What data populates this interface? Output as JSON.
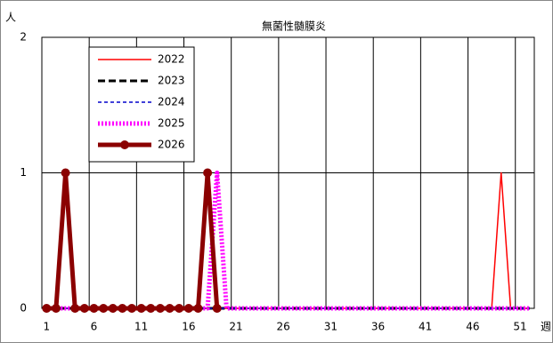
{
  "chart_data": {
    "type": "line",
    "title": "無菌性髄膜炎",
    "y_label": "人",
    "x_label": "週",
    "categories": [
      1,
      null,
      null,
      null,
      null,
      6,
      null,
      null,
      null,
      null,
      11,
      null,
      null,
      null,
      null,
      16,
      null,
      null,
      null,
      null,
      21,
      null,
      null,
      null,
      null,
      26,
      null,
      null,
      null,
      null,
      31,
      null,
      null,
      null,
      null,
      36,
      null,
      null,
      null,
      null,
      41,
      null,
      null,
      null,
      null,
      46,
      null,
      null,
      null,
      null,
      51,
      null
    ],
    "ylim": [
      0,
      2
    ],
    "yticks": [
      0,
      1,
      2
    ],
    "grid": true,
    "legend": "upper-left",
    "series": [
      {
        "name": "2022",
        "color": "#ff0000",
        "width": 1.5,
        "dash": "none",
        "values": [
          0,
          0,
          0,
          0,
          0,
          0,
          0,
          0,
          0,
          0,
          0,
          0,
          0,
          0,
          0,
          0,
          0,
          0,
          0,
          0,
          0,
          0,
          0,
          0,
          0,
          0,
          0,
          0,
          0,
          0,
          0,
          0,
          0,
          0,
          0,
          0,
          0,
          0,
          0,
          0,
          0,
          0,
          0,
          0,
          0,
          0,
          0,
          0,
          1,
          0,
          0,
          0
        ]
      },
      {
        "name": "2023",
        "color": "#000000",
        "width": 3,
        "dash": "8,4",
        "values": [
          0,
          0,
          0,
          0,
          0,
          0,
          0,
          0,
          0,
          0,
          0,
          0,
          0,
          0,
          0,
          0,
          0,
          0,
          0,
          0,
          0,
          0,
          0,
          0,
          0,
          0,
          0,
          0,
          0,
          0,
          0,
          0,
          0,
          0,
          0,
          0,
          0,
          0,
          0,
          0,
          0,
          0,
          0,
          0,
          0,
          0,
          0,
          0,
          0,
          0,
          0,
          0
        ]
      },
      {
        "name": "2024",
        "color": "#0000cc",
        "width": 1.5,
        "dash": "4,3",
        "values": [
          0,
          0,
          0,
          0,
          0,
          0,
          0,
          0,
          0,
          0,
          0,
          0,
          0,
          0,
          0,
          0,
          0,
          0,
          0,
          0,
          0,
          0,
          0,
          0,
          0,
          0,
          0,
          0,
          0,
          0,
          0,
          0,
          0,
          0,
          0,
          0,
          0,
          0,
          0,
          0,
          0,
          0,
          0,
          0,
          0,
          0,
          0,
          0,
          0,
          0,
          0,
          0
        ]
      },
      {
        "name": "2025",
        "color": "#ff00ff",
        "width": 5,
        "dash": "2,2",
        "values": [
          0,
          0,
          0,
          0,
          0,
          0,
          0,
          0,
          0,
          0,
          0,
          0,
          0,
          0,
          0,
          0,
          0,
          0,
          1,
          0,
          0,
          0,
          0,
          0,
          0,
          0,
          0,
          0,
          0,
          0,
          0,
          0,
          0,
          0,
          0,
          0,
          0,
          0,
          0,
          0,
          0,
          0,
          0,
          0,
          0,
          0,
          0,
          0,
          0,
          0,
          0,
          0
        ]
      },
      {
        "name": "2026",
        "color": "#8b0000",
        "width": 5,
        "dash": "none",
        "marker": "circle",
        "values": [
          0,
          0,
          1,
          0,
          0,
          0,
          0,
          0,
          0,
          0,
          0,
          0,
          0,
          0,
          0,
          0,
          0,
          1,
          0,
          null,
          null,
          null,
          null,
          null,
          null,
          null,
          null,
          null,
          null,
          null,
          null,
          null,
          null,
          null,
          null,
          null,
          null,
          null,
          null,
          null,
          null,
          null,
          null,
          null,
          null,
          null,
          null,
          null,
          null,
          null,
          null,
          null
        ]
      }
    ]
  }
}
